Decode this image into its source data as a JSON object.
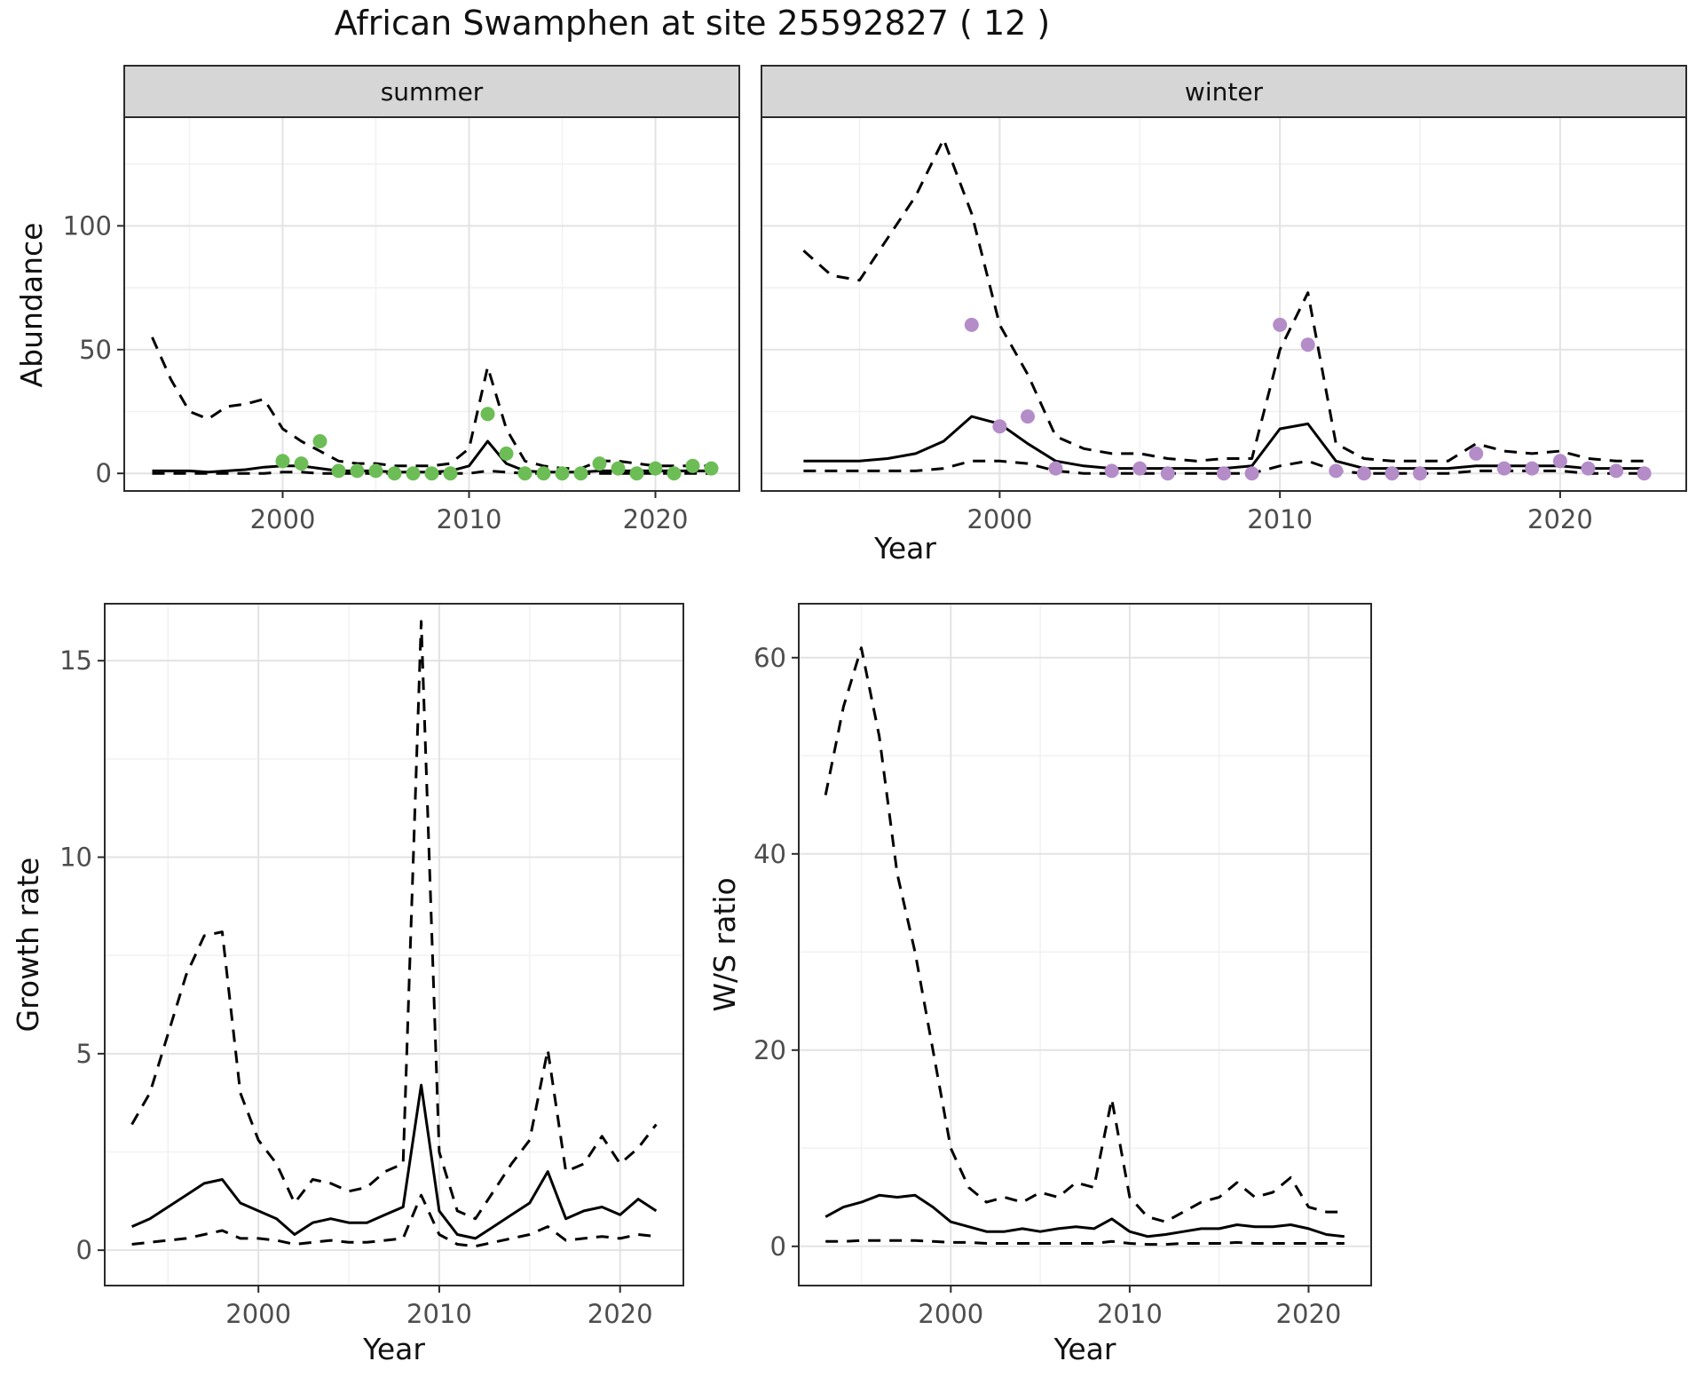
{
  "title": "African Swamphen at site 25592827 ( 12 )",
  "chart_data": [
    {
      "id": "abundance",
      "type": "line",
      "ylabel": "Abundance",
      "xlabel": "Year",
      "xlim": [
        1991.5,
        2024.5
      ],
      "ylim": [
        -7.1,
        143.9
      ],
      "x_ticks": [
        2000,
        2010,
        2020
      ],
      "x_minor": [
        1995,
        2005,
        2015
      ],
      "y_ticks": [
        0,
        50,
        100
      ],
      "y_minor": [
        25,
        75,
        125
      ],
      "facets": [
        {
          "label": "summer",
          "point_color": "#6dbd57",
          "years": [
            1993,
            1994,
            1995,
            1996,
            1997,
            1998,
            1999,
            2000,
            2001,
            2002,
            2003,
            2004,
            2005,
            2006,
            2007,
            2008,
            2009,
            2010,
            2011,
            2012,
            2013,
            2014,
            2015,
            2016,
            2017,
            2018,
            2019,
            2020,
            2021,
            2022,
            2023
          ],
          "upper": [
            55,
            38,
            25,
            22,
            27,
            28,
            30,
            18,
            13,
            9,
            5,
            4,
            4,
            3,
            3,
            3,
            4,
            10,
            43,
            18,
            5,
            3,
            2,
            2,
            5,
            5,
            4,
            3,
            3,
            3,
            3
          ],
          "median": [
            1,
            1,
            1,
            0.5,
            1,
            1.5,
            2.5,
            3,
            3,
            2,
            1,
            1,
            1,
            0.5,
            0.5,
            0.5,
            1,
            3,
            13,
            4,
            1,
            0.5,
            0.5,
            0.5,
            1,
            1,
            1,
            1,
            1,
            1,
            1
          ],
          "lower": [
            0,
            0,
            0,
            0,
            0,
            0,
            0,
            0.5,
            0.5,
            0,
            0,
            0,
            0,
            0,
            0,
            0,
            0,
            0,
            1,
            0.5,
            0,
            0,
            0,
            0,
            0,
            0,
            0,
            0,
            0,
            0,
            0
          ],
          "obs_years": [
            2000,
            2001,
            2002,
            2003,
            2004,
            2005,
            2006,
            2007,
            2008,
            2009,
            2011,
            2012,
            2013,
            2014,
            2015,
            2016,
            2017,
            2018,
            2019,
            2020,
            2021,
            2022,
            2023
          ],
          "obs_values": [
            5,
            4,
            13,
            1,
            1,
            1,
            0,
            0,
            0,
            0,
            24,
            8,
            0,
            0,
            0,
            0,
            4,
            2,
            0,
            2,
            0,
            3,
            2
          ]
        },
        {
          "label": "winter",
          "point_color": "#b48cc8",
          "years": [
            1993,
            1994,
            1995,
            1996,
            1997,
            1998,
            1999,
            2000,
            2001,
            2002,
            2003,
            2004,
            2005,
            2006,
            2007,
            2008,
            2009,
            2010,
            2011,
            2012,
            2013,
            2014,
            2015,
            2016,
            2017,
            2018,
            2019,
            2020,
            2021,
            2022,
            2023
          ],
          "upper": [
            90,
            80,
            78,
            95,
            112,
            135,
            105,
            60,
            40,
            15,
            10,
            8,
            8,
            6,
            5,
            6,
            6,
            50,
            73,
            12,
            6,
            5,
            5,
            5,
            12,
            9,
            8,
            9,
            6,
            5,
            5
          ],
          "median": [
            5,
            5,
            5,
            6,
            8,
            13,
            23,
            20,
            12,
            5,
            3,
            2,
            2,
            2,
            2,
            2,
            3,
            18,
            20,
            5,
            2,
            2,
            2,
            2,
            3,
            3,
            3,
            3,
            2,
            2,
            2
          ],
          "lower": [
            1,
            1,
            1,
            1,
            1,
            2,
            5,
            5,
            4,
            1,
            0,
            0,
            0,
            0,
            0,
            0,
            0,
            3,
            5,
            1,
            0,
            0,
            0,
            0,
            1,
            1,
            1,
            1,
            0,
            0,
            0
          ],
          "obs_years": [
            1999,
            2000,
            2001,
            2002,
            2004,
            2005,
            2006,
            2008,
            2009,
            2010,
            2011,
            2012,
            2013,
            2014,
            2015,
            2017,
            2018,
            2019,
            2020,
            2021,
            2022,
            2023
          ],
          "obs_values": [
            60,
            19,
            23,
            2,
            1,
            2,
            0,
            0,
            0,
            60,
            52,
            1,
            0,
            0,
            0,
            8,
            2,
            2,
            5,
            2,
            1,
            0
          ]
        }
      ]
    },
    {
      "id": "growth_rate",
      "type": "line",
      "ylabel": "Growth rate",
      "xlabel": "Year",
      "xlim": [
        1991.5,
        2023.5
      ],
      "ylim": [
        -0.9,
        16.45
      ],
      "x_ticks": [
        2000,
        2010,
        2020
      ],
      "x_minor": [
        1995,
        2005,
        2015
      ],
      "y_ticks": [
        0,
        5,
        10,
        15
      ],
      "y_minor": [
        2.5,
        7.5,
        12.5
      ],
      "years": [
        1993,
        1994,
        1995,
        1996,
        1997,
        1998,
        1999,
        2000,
        2001,
        2002,
        2003,
        2004,
        2005,
        2006,
        2007,
        2008,
        2009,
        2010,
        2011,
        2012,
        2013,
        2014,
        2015,
        2016,
        2017,
        2018,
        2019,
        2020,
        2021,
        2022
      ],
      "upper": [
        3.2,
        4,
        5.5,
        7,
        8,
        8.1,
        4,
        2.8,
        2.2,
        1.2,
        1.8,
        1.7,
        1.5,
        1.6,
        2,
        2.2,
        16,
        2.5,
        1,
        0.8,
        1.5,
        2.2,
        2.8,
        5.1,
        2,
        2.2,
        2.9,
        2.2,
        2.6,
        3.2
      ],
      "median": [
        0.6,
        0.8,
        1.1,
        1.4,
        1.7,
        1.8,
        1.2,
        1,
        0.8,
        0.4,
        0.7,
        0.8,
        0.7,
        0.7,
        0.9,
        1.1,
        4.2,
        1,
        0.4,
        0.3,
        0.6,
        0.9,
        1.2,
        2,
        0.8,
        1,
        1.1,
        0.9,
        1.3,
        1
      ],
      "lower": [
        0.15,
        0.2,
        0.25,
        0.3,
        0.4,
        0.5,
        0.3,
        0.3,
        0.25,
        0.15,
        0.2,
        0.25,
        0.2,
        0.2,
        0.25,
        0.3,
        1.4,
        0.4,
        0.15,
        0.1,
        0.2,
        0.3,
        0.4,
        0.6,
        0.25,
        0.3,
        0.35,
        0.3,
        0.4,
        0.35
      ]
    },
    {
      "id": "ws_ratio",
      "type": "line",
      "ylabel": "W/S ratio",
      "xlabel": "Year",
      "xlim": [
        1991.5,
        2023.5
      ],
      "ylim": [
        -4,
        65.5
      ],
      "x_ticks": [
        2000,
        2010,
        2020
      ],
      "x_minor": [
        1995,
        2005,
        2015
      ],
      "y_ticks": [
        0,
        20,
        40,
        60
      ],
      "y_minor": [
        10,
        30,
        50
      ],
      "years": [
        1993,
        1994,
        1995,
        1996,
        1997,
        1998,
        1999,
        2000,
        2001,
        2002,
        2003,
        2004,
        2005,
        2006,
        2007,
        2008,
        2009,
        2010,
        2011,
        2012,
        2013,
        2014,
        2015,
        2016,
        2017,
        2018,
        2019,
        2020,
        2021,
        2022
      ],
      "upper": [
        46,
        55,
        61,
        52,
        38,
        30,
        20,
        10,
        6,
        4.5,
        5,
        4.5,
        5.5,
        5,
        6.5,
        6,
        15,
        5,
        3,
        2.5,
        3.5,
        4.5,
        5,
        6.5,
        5,
        5.5,
        7,
        4,
        3.5,
        3.5
      ],
      "median": [
        3,
        4,
        4.5,
        5.2,
        5,
        5.2,
        4,
        2.5,
        2,
        1.5,
        1.5,
        1.8,
        1.5,
        1.8,
        2,
        1.8,
        2.8,
        1.5,
        1,
        1.2,
        1.5,
        1.8,
        1.8,
        2.2,
        2,
        2,
        2.2,
        1.8,
        1.2,
        1
      ],
      "lower": [
        0.5,
        0.5,
        0.6,
        0.6,
        0.6,
        0.6,
        0.5,
        0.4,
        0.4,
        0.3,
        0.3,
        0.3,
        0.3,
        0.3,
        0.3,
        0.3,
        0.5,
        0.3,
        0.2,
        0.2,
        0.3,
        0.3,
        0.3,
        0.4,
        0.3,
        0.3,
        0.3,
        0.3,
        0.3,
        0.3
      ]
    }
  ],
  "style": {
    "grid_major_color": "#e3e3e3",
    "grid_minor_color": "#f1f1f1",
    "panel_border_color": "#2b2b2b",
    "strip_fill_color": "#d6d6d6",
    "line_color": "#000000",
    "tick_label_color": "#4d4d4d"
  }
}
